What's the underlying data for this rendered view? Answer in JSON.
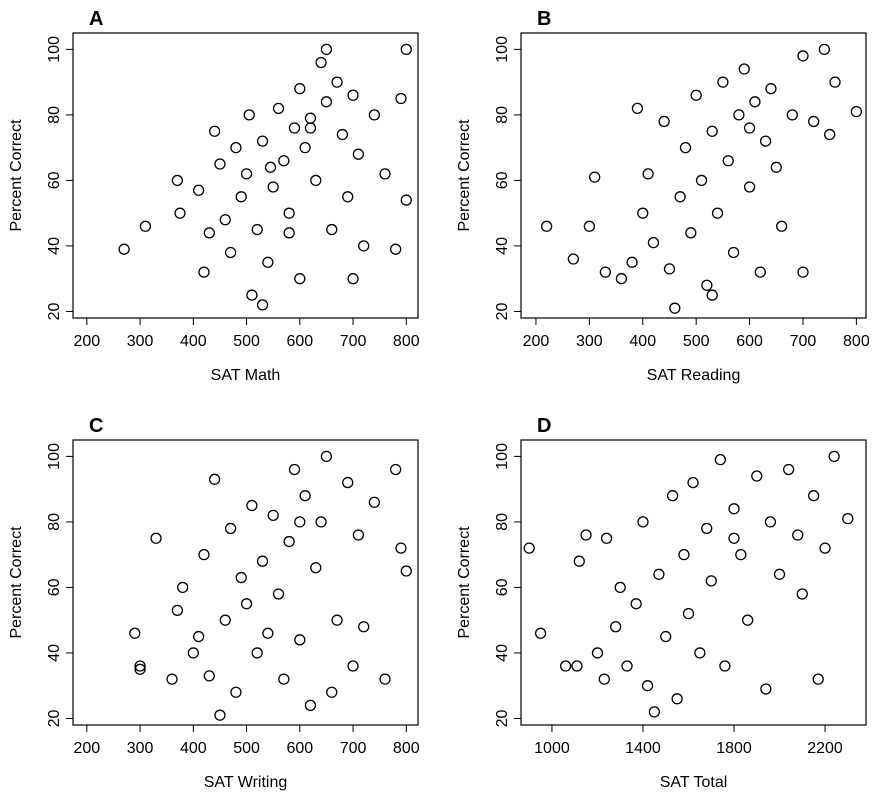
{
  "chart_data": [
    {
      "type": "scatter",
      "title": "A",
      "xlabel": "SAT Math",
      "ylabel": "Percent Correct",
      "xlim": [
        174,
        822
      ],
      "ylim": [
        18,
        105
      ],
      "xticks": [
        200,
        300,
        400,
        500,
        600,
        700,
        800
      ],
      "yticks": [
        20,
        40,
        60,
        80,
        100
      ],
      "x": [
        270,
        310,
        370,
        375,
        410,
        420,
        430,
        440,
        450,
        460,
        470,
        480,
        490,
        500,
        505,
        510,
        520,
        530,
        540,
        550,
        560,
        570,
        580,
        590,
        600,
        600,
        610,
        620,
        630,
        640,
        650,
        660,
        670,
        680,
        690,
        700,
        710,
        720,
        740,
        760,
        780,
        790,
        800,
        800,
        650,
        620,
        580,
        545,
        700,
        530
      ],
      "values": [
        39,
        46,
        60,
        50,
        57,
        32,
        44,
        75,
        65,
        48,
        38,
        70,
        55,
        62,
        80,
        25,
        45,
        72,
        35,
        58,
        82,
        66,
        50,
        76,
        88,
        30,
        70,
        79,
        60,
        96,
        84,
        45,
        90,
        74,
        55,
        86,
        68,
        40,
        80,
        62,
        39,
        85,
        100,
        54,
        100,
        76,
        44,
        64,
        30,
        22
      ]
    },
    {
      "type": "scatter",
      "title": "B",
      "xlabel": "SAT Reading",
      "ylabel": "Percent Correct",
      "xlim": [
        172,
        818
      ],
      "ylim": [
        18,
        105
      ],
      "xticks": [
        200,
        300,
        400,
        500,
        600,
        700,
        800
      ],
      "yticks": [
        20,
        40,
        60,
        80,
        100
      ],
      "x": [
        220,
        270,
        300,
        310,
        330,
        360,
        380,
        390,
        400,
        410,
        420,
        440,
        450,
        460,
        470,
        480,
        490,
        500,
        510,
        520,
        530,
        540,
        550,
        560,
        570,
        580,
        590,
        600,
        610,
        620,
        630,
        640,
        660,
        680,
        700,
        700,
        720,
        740,
        750,
        760,
        800,
        530,
        600,
        650
      ],
      "values": [
        46,
        36,
        46,
        61,
        32,
        30,
        35,
        82,
        50,
        62,
        41,
        78,
        33,
        21,
        55,
        70,
        44,
        86,
        60,
        28,
        75,
        50,
        90,
        66,
        38,
        80,
        94,
        58,
        84,
        32,
        72,
        88,
        46,
        80,
        98,
        32,
        78,
        100,
        74,
        90,
        81,
        25,
        76,
        64
      ]
    },
    {
      "type": "scatter",
      "title": "C",
      "xlabel": "SAT Writing",
      "ylabel": "Percent Correct",
      "xlim": [
        174,
        822
      ],
      "ylim": [
        18,
        105
      ],
      "xticks": [
        200,
        300,
        400,
        500,
        600,
        700,
        800
      ],
      "yticks": [
        20,
        40,
        60,
        80,
        100
      ],
      "x": [
        290,
        300,
        300,
        330,
        360,
        370,
        380,
        400,
        410,
        420,
        430,
        440,
        450,
        460,
        470,
        480,
        490,
        500,
        510,
        520,
        530,
        540,
        550,
        560,
        570,
        580,
        590,
        600,
        610,
        620,
        630,
        640,
        650,
        660,
        670,
        690,
        700,
        710,
        720,
        740,
        760,
        780,
        790,
        800,
        600
      ],
      "values": [
        46,
        36,
        35,
        75,
        32,
        53,
        60,
        40,
        45,
        70,
        33,
        93,
        21,
        50,
        78,
        28,
        63,
        55,
        85,
        40,
        68,
        46,
        82,
        58,
        32,
        74,
        96,
        44,
        88,
        24,
        66,
        80,
        100,
        28,
        50,
        92,
        36,
        76,
        48,
        86,
        32,
        96,
        72,
        65,
        80
      ]
    },
    {
      "type": "scatter",
      "title": "D",
      "xlabel": "SAT Total",
      "ylabel": "Percent Correct",
      "xlim": [
        864,
        2380
      ],
      "ylim": [
        18,
        105
      ],
      "xticks": [
        1000,
        1400,
        1800,
        2200
      ],
      "yticks": [
        20,
        40,
        60,
        80,
        100
      ],
      "x": [
        900,
        950,
        1060,
        1110,
        1120,
        1150,
        1200,
        1230,
        1240,
        1280,
        1300,
        1330,
        1370,
        1400,
        1420,
        1450,
        1470,
        1500,
        1530,
        1550,
        1580,
        1600,
        1620,
        1650,
        1680,
        1700,
        1740,
        1760,
        1800,
        1830,
        1860,
        1900,
        1940,
        1960,
        2000,
        2040,
        2080,
        2100,
        2150,
        2170,
        2200,
        2240,
        2300,
        1800
      ],
      "values": [
        72,
        46,
        36,
        36,
        68,
        76,
        40,
        32,
        75,
        48,
        60,
        36,
        55,
        80,
        30,
        22,
        64,
        45,
        88,
        26,
        70,
        52,
        92,
        40,
        78,
        62,
        99,
        36,
        84,
        70,
        50,
        94,
        29,
        80,
        64,
        96,
        76,
        58,
        88,
        32,
        72,
        100,
        81,
        75
      ]
    }
  ]
}
